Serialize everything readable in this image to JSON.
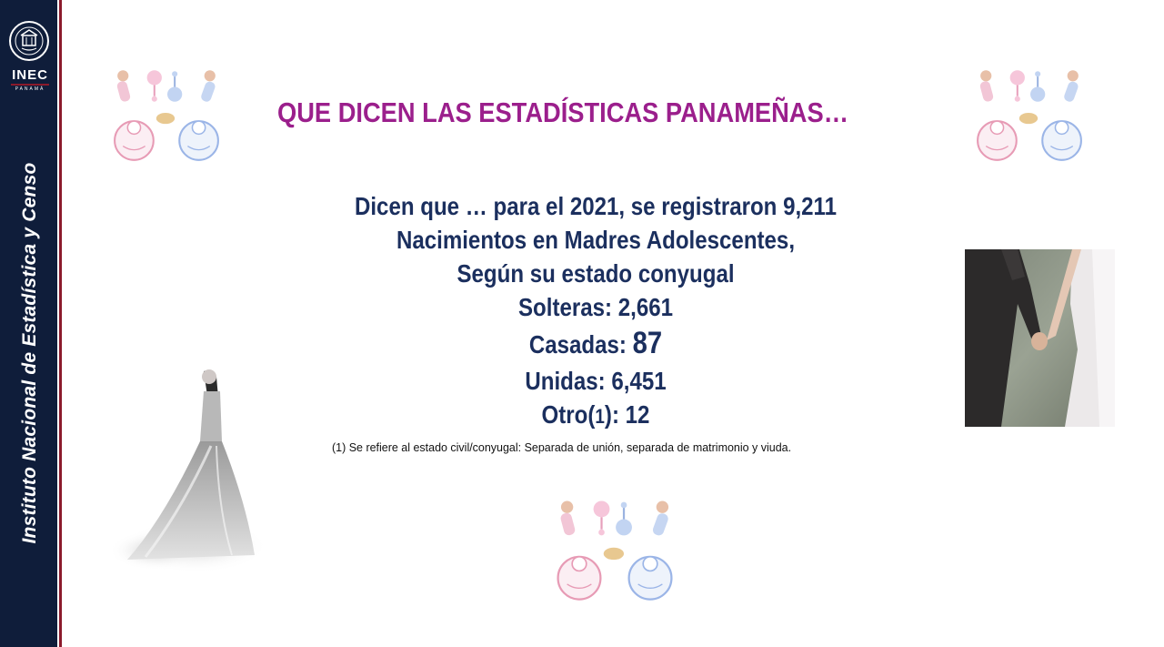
{
  "sidebar": {
    "org_name": "Instituto Nacional de Estadística y Censo",
    "logo_text": "INEC",
    "logo_subtext": "PANAMÁ"
  },
  "title": "QUE DICEN LAS ESTADÍSTICAS PANAMEÑAS…",
  "stats": {
    "intro_line1": "Dicen que …  para el 2021, se registraron  9,211",
    "intro_line2": "Nacimientos en Madres Adolescentes,",
    "intro_line3": "Según su estado conyugal",
    "solteras_label": "Solteras: ",
    "solteras_value": "2,661",
    "casadas_label": "Casadas: ",
    "casadas_value": "87",
    "unidas_label": "Unidas: ",
    "unidas_value": "6,451",
    "otro_label": "Otro(",
    "otro_ref": "1",
    "otro_close": "): ",
    "otro_value": "12"
  },
  "footnote": "(1)  Se refiere al estado civil/conyugal: Separada de unión, separada de matrimonio y viuda.",
  "colors": {
    "sidebar_bg": "#0f1d3a",
    "accent_red": "#8b1a2b",
    "title": "#9b1f8c",
    "stats_text": "#1b2f5e"
  }
}
